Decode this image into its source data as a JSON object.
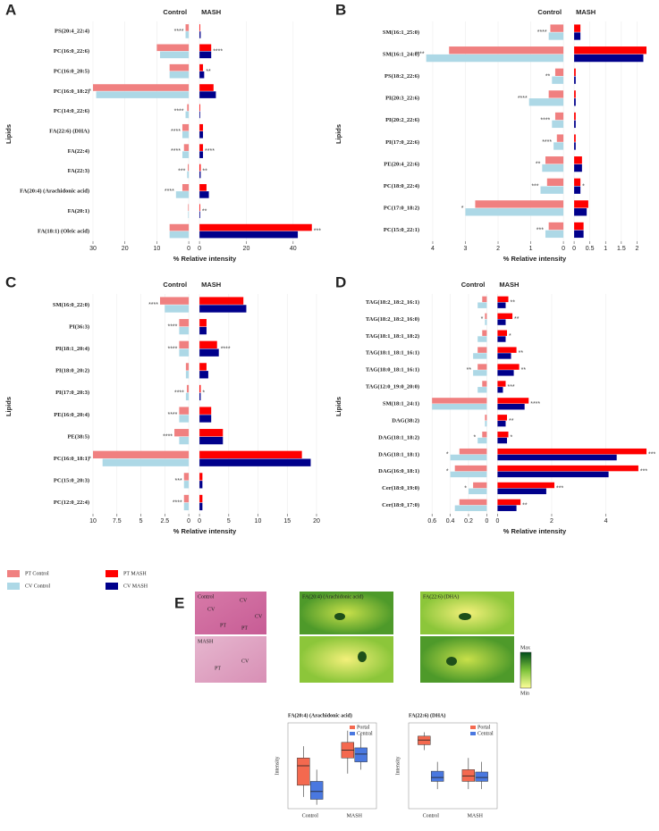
{
  "chart_data": [
    {
      "type": "butterfly",
      "panel_label": "A",
      "control_header": "Control",
      "mash_header": "MASH",
      "xlabel": "% Relative intensity",
      "ylabel": "Lipids",
      "grid": true,
      "categories": [
        "PS(20:4_22:4)",
        "PC(16:0_22:6)",
        "PC(16:0_20:5)",
        "PC(16:0_18:2)",
        "PC(14:0_22:6)",
        "FA(22:6) (DHA)",
        "FA(22:4)",
        "FA(22:3)",
        "FA(20:4) (Arachidonic acid)",
        "FA(20:1)",
        "FA(18:1) (Oleic acid)"
      ],
      "control": {
        "xlim": [
          30,
          0
        ],
        "xticks": [
          30,
          20,
          10,
          0
        ]
      },
      "mash": {
        "xlim": [
          0,
          50
        ],
        "xticks": [
          0,
          20,
          40
        ]
      },
      "series": [
        {
          "name": "PT Control",
          "side": "control",
          "color": "#f08080",
          "values": [
            1,
            10,
            6,
            30,
            0.5,
            2,
            1.5,
            0.3,
            2,
            0.2,
            6
          ]
        },
        {
          "name": "CV Control",
          "side": "control",
          "color": "#add8e6",
          "values": [
            1,
            9,
            6,
            29,
            1,
            2,
            2,
            0.5,
            4,
            0.2,
            6
          ]
        },
        {
          "name": "PT MASH",
          "side": "mash",
          "color": "#ff0000",
          "values": [
            0.3,
            5,
            1.5,
            6,
            0.3,
            1.5,
            1.5,
            0.5,
            3,
            0.3,
            48
          ]
        },
        {
          "name": "CV MASH",
          "side": "mash",
          "color": "#00008b",
          "values": [
            0.5,
            5,
            2,
            7,
            0.3,
            1.5,
            1.5,
            0.5,
            4,
            0.3,
            42
          ]
        }
      ],
      "control_sig": [
        "****",
        null,
        null,
        "*",
        "****",
        "****",
        "****",
        "***",
        "****",
        null,
        null
      ],
      "mash_sig": [
        null,
        "****",
        "**",
        null,
        null,
        null,
        "****",
        "**",
        null,
        "**",
        "***"
      ]
    },
    {
      "type": "butterfly",
      "panel_label": "B",
      "control_header": "Control",
      "mash_header": "MASH",
      "xlabel": "% Relative intensity",
      "ylabel": "Lipids",
      "grid": true,
      "categories": [
        "SM(16:1_25:0)",
        "SM(16:1_24:0)",
        "PS(18:2_22:6)",
        "PI(20:3_22:6)",
        "PI(20:2_22:6)",
        "PI(17:0_22:6)",
        "PE(20:4_22:6)",
        "PC(18:0_22:4)",
        "PC(17:0_18:2)",
        "PC(15:0_22:1)"
      ],
      "control": {
        "xlim": [
          4.3,
          0
        ],
        "xticks": [
          4,
          3,
          2,
          1,
          0
        ]
      },
      "mash": {
        "xlim": [
          0,
          2.3
        ],
        "xticks": [
          0,
          0.5,
          1,
          1.5,
          2
        ]
      },
      "series": [
        {
          "name": "PT Control",
          "side": "control",
          "color": "#f08080",
          "values": [
            0.4,
            3.5,
            0.25,
            0.45,
            0.25,
            0.2,
            0.55,
            0.5,
            2.7,
            0.45
          ]
        },
        {
          "name": "CV Control",
          "side": "control",
          "color": "#add8e6",
          "values": [
            0.45,
            4.2,
            0.35,
            1.05,
            0.35,
            0.3,
            0.65,
            0.7,
            3.0,
            0.55
          ]
        },
        {
          "name": "PT MASH",
          "side": "mash",
          "color": "#ff0000",
          "values": [
            0.2,
            2.3,
            0.05,
            0.05,
            0.05,
            0.05,
            0.25,
            0.2,
            0.45,
            0.3
          ]
        },
        {
          "name": "CV MASH",
          "side": "mash",
          "color": "#00008b",
          "values": [
            0.2,
            2.2,
            0.05,
            0.05,
            0.05,
            0.05,
            0.25,
            0.2,
            0.4,
            0.3
          ]
        }
      ],
      "control_sig": [
        "****",
        "****",
        "**",
        "****",
        "****",
        "****",
        "**",
        "***",
        "*",
        "***"
      ],
      "mash_sig": [
        null,
        null,
        null,
        null,
        null,
        null,
        null,
        "*",
        null,
        null
      ]
    },
    {
      "type": "butterfly",
      "panel_label": "C",
      "control_header": "Control",
      "mash_header": "MASH",
      "xlabel": "% Relative intensity",
      "ylabel": "Lipids",
      "grid": true,
      "categories": [
        "SM(16:0_22:0)",
        "PI(36:3)",
        "PI(18:1_20:4)",
        "PI(18:0_20:2)",
        "PI(17:0_20:3)",
        "PE(16:0_20:4)",
        "PE(38:5)",
        "PC(16:0_18:1)",
        "PC(15:0_20:3)",
        "PC(12:0_22:4)"
      ],
      "control": {
        "xlim": [
          10,
          0
        ],
        "xticks": [
          10,
          7.5,
          5,
          2.5,
          0
        ]
      },
      "mash": {
        "xlim": [
          0,
          20
        ],
        "xticks": [
          0,
          5,
          10,
          15,
          20
        ]
      },
      "series": [
        {
          "name": "PT Control",
          "side": "control",
          "color": "#f08080",
          "values": [
            3,
            1,
            1,
            0.3,
            0.2,
            1,
            1.5,
            10,
            0.5,
            0.5
          ]
        },
        {
          "name": "CV Control",
          "side": "control",
          "color": "#add8e6",
          "values": [
            2.5,
            1,
            1,
            0.3,
            0.3,
            1,
            1,
            9,
            0.5,
            0.5
          ]
        },
        {
          "name": "PT MASH",
          "side": "mash",
          "color": "#ff0000",
          "values": [
            7.5,
            1.2,
            3,
            1.2,
            0.2,
            2,
            4,
            17.5,
            0.5,
            0.5
          ]
        },
        {
          "name": "CV MASH",
          "side": "mash",
          "color": "#00008b",
          "values": [
            8,
            1.2,
            3.3,
            1.5,
            0.2,
            2,
            4,
            19,
            0.5,
            0.5
          ]
        }
      ],
      "control_sig": [
        "****",
        "****",
        "****",
        null,
        "****",
        "****",
        "****",
        "*",
        "***",
        "****"
      ],
      "mash_sig": [
        null,
        null,
        "****",
        null,
        "*",
        null,
        null,
        null,
        null,
        null
      ]
    },
    {
      "type": "butterfly",
      "panel_label": "D",
      "control_header": "Control",
      "mash_header": "MASH",
      "xlabel": "% Relative intensity",
      "ylabel": "Lipids",
      "grid": true,
      "categories": [
        "TAG(18:2_18:2_16:1)",
        "TAG(18:2_18:2_16:0)",
        "TAG(18:1_18:1_18:2)",
        "TAG(18:1_18:1_16:1)",
        "TAG(18:0_18:1_16:1)",
        "TAG(12:0_19:0_20:0)",
        "SM(18:1_24:1)",
        "DAG(38:2)",
        "DAG(18:1_18:2)",
        "DAG(18:1_18:1)",
        "DAG(16:0_18:1)",
        "Cer(18:0_19:0)",
        "Cer(18:0_17:0)"
      ],
      "control": {
        "xlim": [
          0.7,
          0
        ],
        "xticks": [
          0.6,
          0.4,
          0.2,
          0
        ]
      },
      "mash": {
        "xlim": [
          0,
          5.5
        ],
        "xticks": [
          0,
          2,
          4
        ]
      },
      "series": [
        {
          "name": "PT Control",
          "side": "control",
          "color": "#f08080",
          "values": [
            0.05,
            0.02,
            0.05,
            0.1,
            0.1,
            0.05,
            0.6,
            0.02,
            0.05,
            0.3,
            0.35,
            0.15,
            0.3
          ]
        },
        {
          "name": "CV Control",
          "side": "control",
          "color": "#add8e6",
          "values": [
            0.1,
            0.02,
            0.1,
            0.15,
            0.15,
            0.1,
            0.6,
            0.02,
            0.1,
            0.4,
            0.4,
            0.2,
            0.35
          ]
        },
        {
          "name": "PT MASH",
          "side": "mash",
          "color": "#ff0000",
          "values": [
            0.4,
            0.55,
            0.35,
            0.7,
            0.8,
            0.3,
            1.15,
            0.35,
            0.4,
            5.5,
            5.2,
            2.1,
            0.85
          ]
        },
        {
          "name": "CV MASH",
          "side": "mash",
          "color": "#00008b",
          "values": [
            0.3,
            0.3,
            0.3,
            0.5,
            0.6,
            0.2,
            1.0,
            0.3,
            0.35,
            4.4,
            4.1,
            1.8,
            0.7
          ]
        }
      ],
      "control_sig": [
        null,
        "*",
        null,
        null,
        "**",
        null,
        null,
        null,
        "*",
        "*",
        "*",
        "*",
        null
      ],
      "mash_sig": [
        "**",
        "**",
        "*",
        "**",
        "**",
        "***",
        "****",
        "**",
        "*",
        "***",
        "***",
        "***",
        "**"
      ]
    },
    {
      "type": "box",
      "title": "FA(20:4) (Arachidonic acid)",
      "ylabel": "Intensity",
      "categories": [
        "Control",
        "MASH"
      ],
      "ylim": [
        0,
        110
      ],
      "series": [
        {
          "name": "Portal",
          "color": "#f4694f",
          "values": [
            {
              "min": 15,
              "q1": 30,
              "median": 55,
              "q3": 65,
              "max": 80
            },
            {
              "min": 45,
              "q1": 65,
              "median": 75,
              "q3": 85,
              "max": 100
            }
          ]
        },
        {
          "name": "Central",
          "color": "#4a78e0",
          "values": [
            {
              "min": 5,
              "q1": 12,
              "median": 22,
              "q3": 35,
              "max": 50
            },
            {
              "min": 50,
              "q1": 60,
              "median": 70,
              "q3": 78,
              "max": 95
            }
          ]
        }
      ]
    },
    {
      "type": "box",
      "title": "FA(22:6) (DHA)",
      "ylabel": "Intensity",
      "categories": [
        "Control",
        "MASH"
      ],
      "ylim": [
        0,
        110
      ],
      "series": [
        {
          "name": "Portal",
          "color": "#f4694f",
          "values": [
            {
              "min": 75,
              "q1": 82,
              "median": 88,
              "q3": 93,
              "max": 98
            },
            {
              "min": 25,
              "q1": 35,
              "median": 42,
              "q3": 50,
              "max": 65
            }
          ]
        },
        {
          "name": "Central",
          "color": "#4a78e0",
          "values": [
            {
              "min": 25,
              "q1": 35,
              "median": 40,
              "q3": 48,
              "max": 60
            },
            {
              "min": 25,
              "q1": 35,
              "median": 40,
              "q3": 47,
              "max": 60
            }
          ]
        }
      ]
    }
  ],
  "panel_e": {
    "label": "E",
    "histology": [
      "Control",
      "MASH"
    ],
    "region_labels": [
      "CV",
      "CV",
      "CV",
      "PT",
      "PT",
      "CV",
      "PT"
    ],
    "msi_titles": [
      "FA(20:4) (Arachidonic acid)",
      "FA(22:6) (DHA)"
    ],
    "colorbar": {
      "max": "Max",
      "min": "Min"
    }
  }
}
